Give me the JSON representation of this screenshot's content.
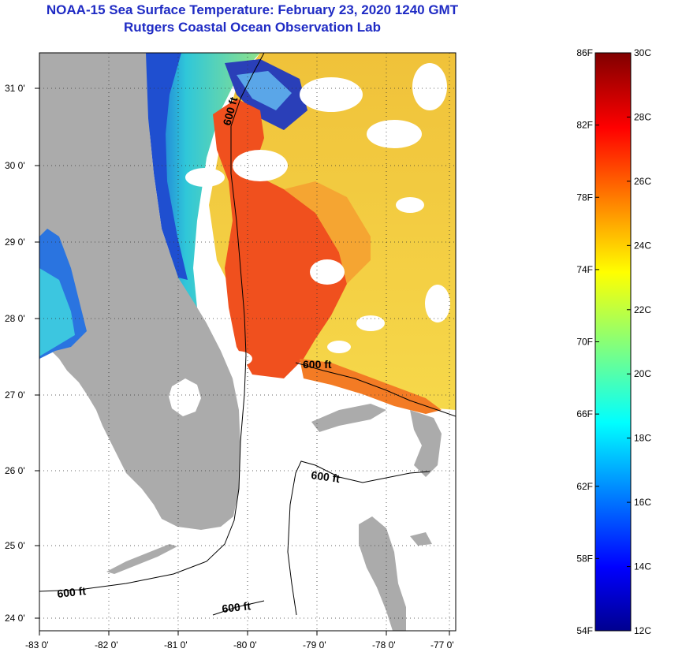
{
  "header": {
    "title_line1": "NOAA-15 Sea Surface Temperature:  February 23, 2020 1240 GMT",
    "title_line2": "Rutgers Coastal Ocean Observation Lab"
  },
  "map": {
    "lon_ticks": [
      "-83 0'",
      "-82 0'",
      "-81 0'",
      "-80 0'",
      "-79 0'",
      "-78 0'",
      "-77 0'"
    ],
    "lat_ticks": [
      "31 0'",
      "30 0'",
      "29 0'",
      "28 0'",
      "27 0'",
      "26 0'",
      "25 0'",
      "24 0'"
    ],
    "contour_labels": [
      "600 ft",
      "600 ft",
      "600 ft",
      "600 ft",
      "600 ft"
    ],
    "colors": {
      "land": "#ababab",
      "no_data": "#ffffff",
      "border": "#000000"
    }
  },
  "colorbar": {
    "fahrenheit_labels": [
      "86F",
      "82F",
      "78F",
      "74F",
      "70F",
      "66F",
      "62F",
      "58F",
      "54F"
    ],
    "celsius_labels": [
      "30C",
      "28C",
      "26C",
      "24C",
      "22C",
      "20C",
      "18C",
      "16C",
      "14C",
      "12C"
    ],
    "range_c": [
      12,
      30
    ],
    "range_f": [
      54,
      86
    ]
  }
}
